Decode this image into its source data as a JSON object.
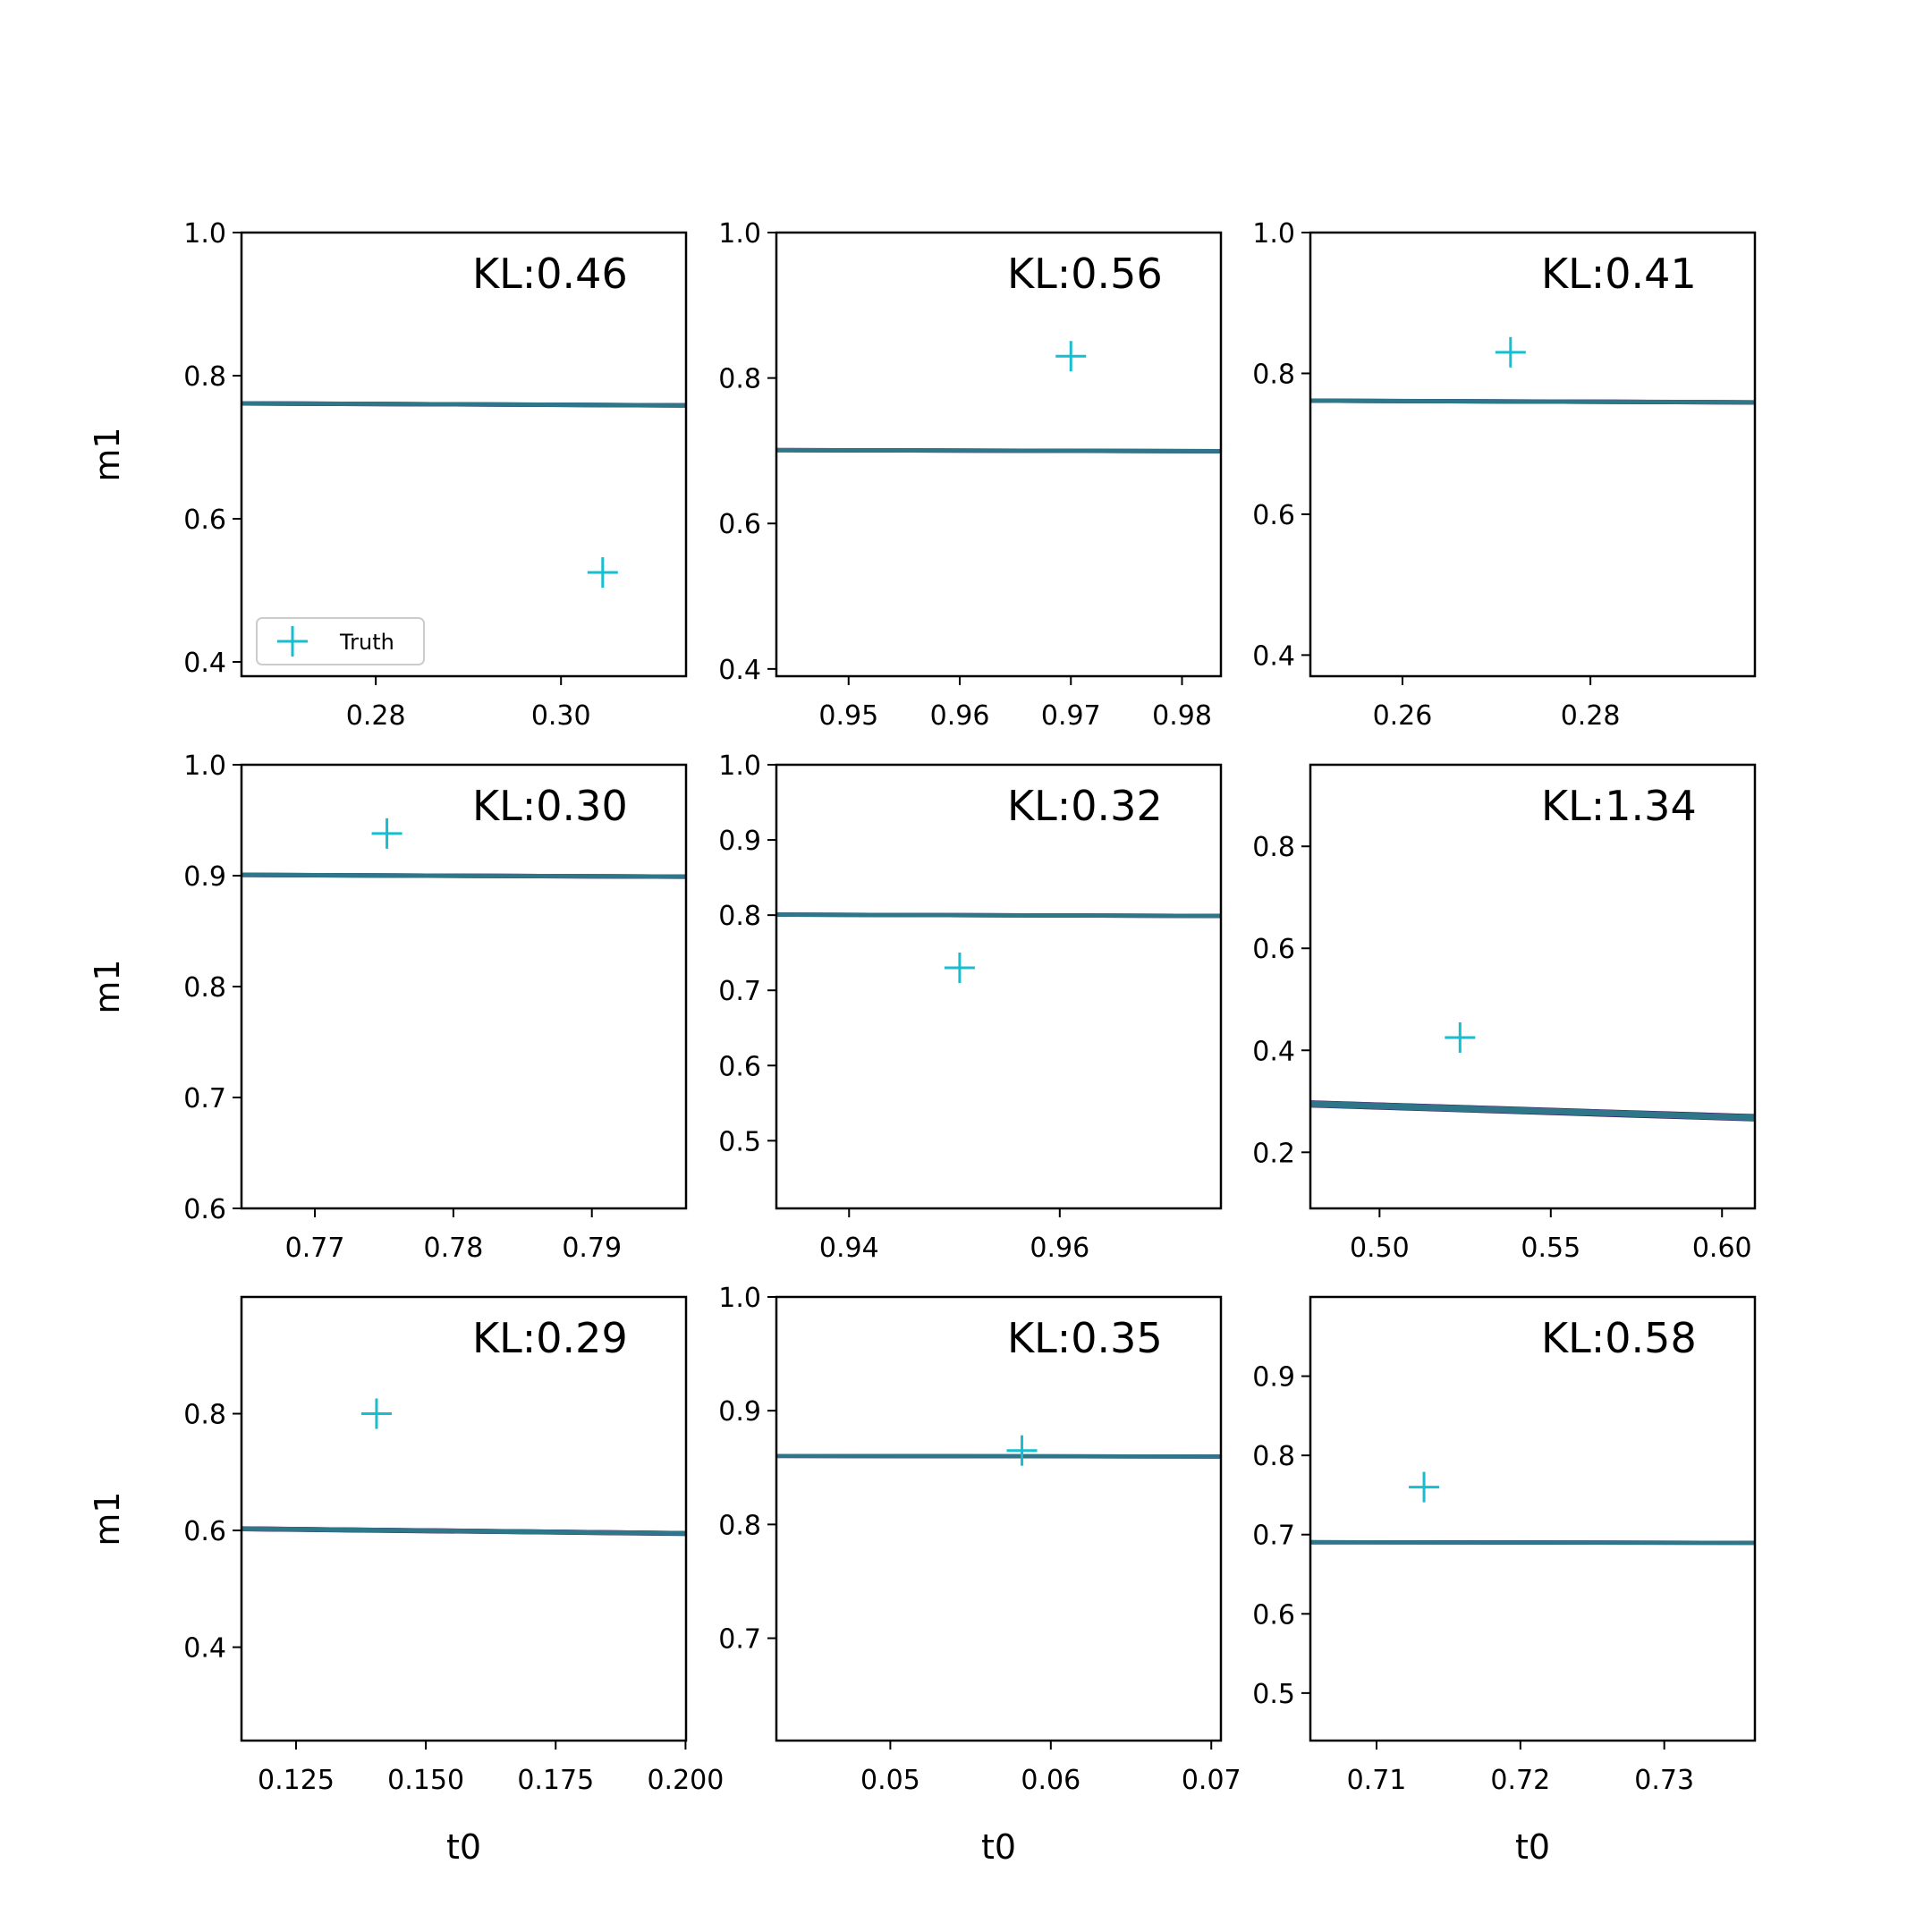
{
  "figure": {
    "xlabel": "t0",
    "ylabel": "m1",
    "legend_label": "Truth"
  },
  "colors": {
    "fill_light": "#fde8dd",
    "fill_mid": "#f9b39a",
    "fill_dark": "#dd2a22",
    "contour_outer": "#3e0f57",
    "contour_middle": "#4b2c82",
    "contour_inner": "#2d7788",
    "truth_marker": "#17becf",
    "axes": "#000000",
    "legend_border": "#cccccc"
  },
  "chart_data": [
    {
      "type": "contour",
      "annotation": "KL:0.46",
      "xlim": [
        0.2655,
        0.3135
      ],
      "ylim": [
        0.38,
        1.0
      ],
      "xticks": [
        "0.28",
        "0.30"
      ],
      "yticks": [
        "0.4",
        "0.6",
        "0.8",
        "1.0"
      ],
      "truth": [
        0.3045,
        0.525
      ],
      "show_legend": true,
      "shape": {
        "peak": [
          0.2875,
          0.76
        ],
        "top": 0.995,
        "bottom": 0.52,
        "hw": 0.0046,
        "slope": -0.058
      }
    },
    {
      "type": "contour",
      "annotation": "KL:0.56",
      "xlim": [
        0.9435,
        0.9835
      ],
      "ylim": [
        0.39,
        1.0
      ],
      "xticks": [
        "0.95",
        "0.96",
        "0.97",
        "0.98"
      ],
      "yticks": [
        "0.4",
        "0.6",
        "0.8",
        "1.0"
      ],
      "truth": [
        0.97,
        0.83
      ],
      "show_legend": false,
      "shape": {
        "peak": [
          0.9665,
          0.7
        ],
        "top": 0.99,
        "bottom": 0.51,
        "hw": 0.0052,
        "slope": -0.037
      }
    },
    {
      "type": "contour",
      "annotation": "KL:0.41",
      "xlim": [
        0.2502,
        0.2975
      ],
      "ylim": [
        0.37,
        1.0
      ],
      "xticks": [
        "0.26",
        "0.28"
      ],
      "yticks": [
        "0.4",
        "0.6",
        "0.8",
        "1.0"
      ],
      "truth": [
        0.2715,
        0.83
      ],
      "show_legend": false,
      "shape": {
        "peak": [
          0.2745,
          0.76
        ],
        "top": 0.99,
        "bottom": 0.51,
        "hw": 0.0048,
        "slope": -0.051
      }
    },
    {
      "type": "contour",
      "annotation": "KL:0.30",
      "xlim": [
        0.7647,
        0.7968
      ],
      "ylim": [
        0.6,
        1.0
      ],
      "xticks": [
        "0.77",
        "0.78",
        "0.79"
      ],
      "yticks": [
        "0.6",
        "0.7",
        "0.8",
        "0.9",
        "1.0"
      ],
      "truth": [
        0.7752,
        0.938
      ],
      "show_legend": false,
      "shape": {
        "peak": [
          0.7785,
          0.9
        ],
        "top": 0.998,
        "bottom": 0.73,
        "hw": 0.0042,
        "slope": -0.05
      }
    },
    {
      "type": "contour",
      "annotation": "KL:0.32",
      "xlim": [
        0.9331,
        0.9753
      ],
      "ylim": [
        0.41,
        1.0
      ],
      "xticks": [
        "0.94",
        "0.96"
      ],
      "yticks": [
        "0.5",
        "0.6",
        "0.7",
        "0.8",
        "0.9",
        "1.0"
      ],
      "truth": [
        0.9505,
        0.73
      ],
      "show_legend": false,
      "shape": {
        "peak": [
          0.9495,
          0.8
        ],
        "top": 0.995,
        "bottom": 0.58,
        "hw": 0.0043,
        "slope": -0.042
      }
    },
    {
      "type": "contour",
      "annotation": "KL:1.34",
      "xlim": [
        0.4798,
        0.6096
      ],
      "ylim": [
        0.09,
        0.96
      ],
      "xticks": [
        "0.50",
        "0.55",
        "0.60"
      ],
      "yticks": [
        "0.2",
        "0.4",
        "0.6",
        "0.8"
      ],
      "truth": [
        0.5235,
        0.425
      ],
      "show_legend": false,
      "shape": {
        "peak": [
          0.551,
          0.28
        ],
        "top": 0.5,
        "bottom": 0.13,
        "hw": 0.0145,
        "slope": -0.21
      }
    },
    {
      "type": "contour",
      "annotation": "KL:0.29",
      "xlim": [
        0.1145,
        0.2001
      ],
      "ylim": [
        0.24,
        1.0
      ],
      "xticks": [
        "0.125",
        "0.150",
        "0.175",
        "0.200"
      ],
      "yticks": [
        "0.4",
        "0.6",
        "0.8"
      ],
      "truth": [
        0.1405,
        0.8
      ],
      "show_legend": false,
      "shape": {
        "peak": [
          0.145,
          0.6
        ],
        "top": 0.985,
        "bottom": 0.31,
        "hw": 0.0085,
        "slope": -0.093
      }
    },
    {
      "type": "contour",
      "annotation": "KL:0.35",
      "xlim": [
        0.0429,
        0.0706
      ],
      "ylim": [
        0.61,
        1.0
      ],
      "xticks": [
        "0.05",
        "0.06",
        "0.07"
      ],
      "yticks": [
        "0.7",
        "0.8",
        "0.9",
        "1.0"
      ],
      "truth": [
        0.0582,
        0.865
      ],
      "show_legend": false,
      "shape": {
        "peak": [
          0.0545,
          0.86
        ],
        "top": 0.995,
        "bottom": 0.67,
        "hw": 0.003,
        "slope": -0.018
      }
    },
    {
      "type": "contour",
      "annotation": "KL:0.58",
      "xlim": [
        0.7054,
        0.7363
      ],
      "ylim": [
        0.44,
        1.0
      ],
      "xticks": [
        "0.71",
        "0.72",
        "0.73"
      ],
      "yticks": [
        "0.5",
        "0.6",
        "0.7",
        "0.8",
        "0.9"
      ],
      "truth": [
        0.7133,
        0.76
      ],
      "show_legend": false,
      "shape": {
        "peak": [
          0.7205,
          0.69
        ],
        "top": 0.96,
        "bottom": 0.49,
        "hw": 0.0042,
        "slope": -0.022
      }
    }
  ]
}
